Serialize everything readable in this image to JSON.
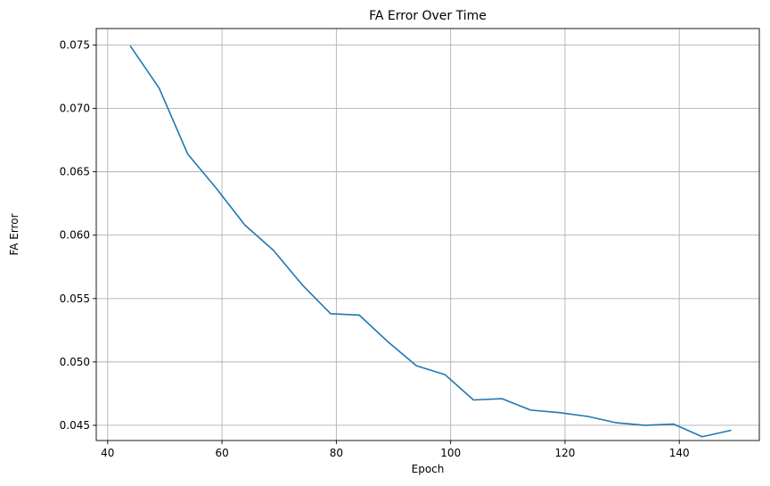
{
  "chart_data": {
    "type": "line",
    "title": "FA Error Over Time",
    "xlabel": "Epoch",
    "ylabel": "FA Error",
    "xlim": [
      38,
      154
    ],
    "ylim": [
      0.0438,
      0.0763
    ],
    "xticks": [
      40,
      60,
      80,
      100,
      120,
      140
    ],
    "xtick_labels": [
      "40",
      "60",
      "80",
      "100",
      "120",
      "140"
    ],
    "yticks": [
      0.045,
      0.05,
      0.055,
      0.06,
      0.065,
      0.07,
      0.075
    ],
    "ytick_labels": [
      "0.045",
      "0.050",
      "0.055",
      "0.060",
      "0.065",
      "0.070",
      "0.075"
    ],
    "grid": true,
    "series": [
      {
        "color": "#1f77b4",
        "x": [
          44,
          49,
          54,
          59,
          64,
          69,
          74,
          79,
          84,
          89,
          94,
          99,
          104,
          109,
          114,
          119,
          124,
          129,
          134,
          139,
          144,
          149
        ],
        "y": [
          0.0749,
          0.0716,
          0.0664,
          0.0637,
          0.0608,
          0.0588,
          0.0561,
          0.0538,
          0.0537,
          0.0516,
          0.0497,
          0.049,
          0.047,
          0.0471,
          0.0462,
          0.046,
          0.0457,
          0.0452,
          0.045,
          0.0451,
          0.0441,
          0.0446
        ]
      }
    ]
  }
}
